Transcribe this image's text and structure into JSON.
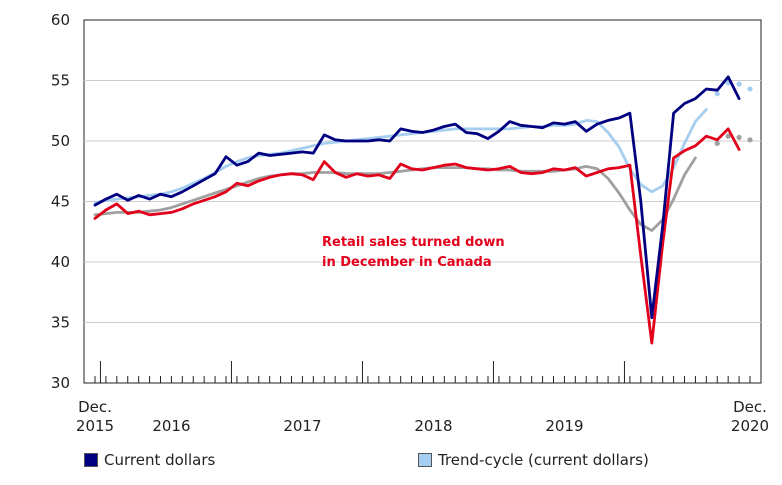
{
  "chart_data": {
    "type": "line",
    "title": "",
    "annotation": "Retail sales turned down in December in Canada",
    "annotation_lines": [
      "Retail sales turned down",
      "in December in Canada"
    ],
    "xlabel": "",
    "ylabel": "",
    "ylim": [
      30,
      60
    ],
    "y_ticks": [
      30,
      35,
      40,
      45,
      50,
      55,
      60
    ],
    "x_labels": [
      {
        "index": 0,
        "line1": "Dec.",
        "line2": "2015"
      },
      {
        "index": 7,
        "line1": "",
        "line2": "2016"
      },
      {
        "index": 19,
        "line1": "",
        "line2": "2017"
      },
      {
        "index": 31,
        "line1": "",
        "line2": "2018"
      },
      {
        "index": 43,
        "line1": "",
        "line2": "2019"
      },
      {
        "index": 60,
        "line1": "Dec.",
        "line2": "2020"
      }
    ],
    "year_separator_indices": [
      0.5,
      12.5,
      24.5,
      36.5,
      48.5
    ],
    "n_points": 61,
    "series": [
      {
        "name": "Current dollars",
        "color": "#000080",
        "legend": true,
        "values": [
          44.7,
          45.2,
          45.6,
          45.1,
          45.5,
          45.2,
          45.6,
          45.4,
          45.8,
          46.3,
          46.8,
          47.3,
          48.7,
          48.0,
          48.3,
          49.0,
          48.8,
          48.9,
          49.0,
          49.1,
          49.0,
          50.5,
          50.1,
          50.0,
          50.0,
          50.0,
          50.1,
          50.0,
          51.0,
          50.8,
          50.7,
          50.9,
          51.2,
          51.4,
          50.7,
          50.6,
          50.2,
          50.8,
          51.6,
          51.3,
          51.2,
          51.1,
          51.5,
          51.4,
          51.6,
          50.8,
          51.4,
          51.7,
          51.9,
          52.3,
          45.0,
          35.4,
          43.0,
          52.3,
          53.1,
          53.5,
          54.3,
          54.2,
          55.3,
          53.5,
          null
        ]
      },
      {
        "name": "Trend-cycle (current dollars)",
        "color": "#a6cef0",
        "legend": true,
        "values": [
          44.9,
          45.1,
          45.2,
          45.3,
          45.4,
          45.5,
          45.6,
          45.8,
          46.1,
          46.5,
          46.9,
          47.4,
          47.9,
          48.3,
          48.6,
          48.8,
          48.9,
          49.0,
          49.2,
          49.4,
          49.6,
          49.8,
          49.9,
          50.0,
          50.1,
          50.2,
          50.3,
          50.4,
          50.5,
          50.6,
          50.7,
          50.8,
          50.9,
          51.0,
          51.0,
          51.0,
          51.0,
          51.0,
          51.0,
          51.1,
          51.2,
          51.2,
          51.3,
          51.3,
          51.4,
          51.7,
          51.6,
          50.7,
          49.5,
          47.7,
          46.4,
          45.8,
          46.3,
          47.8,
          49.8,
          51.6,
          52.6,
          null,
          null,
          null,
          null
        ]
      },
      {
        "name": "Trend-cycle dotted (current dollars)",
        "color": "#a6cef0",
        "legend": false,
        "dotted": true,
        "values": [
          null,
          null,
          null,
          null,
          null,
          null,
          null,
          null,
          null,
          null,
          null,
          null,
          null,
          null,
          null,
          null,
          null,
          null,
          null,
          null,
          null,
          null,
          null,
          null,
          null,
          null,
          null,
          null,
          null,
          null,
          null,
          null,
          null,
          null,
          null,
          null,
          null,
          null,
          null,
          null,
          null,
          null,
          null,
          null,
          null,
          null,
          null,
          null,
          null,
          null,
          null,
          null,
          null,
          null,
          null,
          null,
          null,
          53.9,
          54.8,
          54.7,
          54.3
        ]
      },
      {
        "name": "Constant dollars",
        "color": "#e3001b",
        "legend": false,
        "values": [
          43.6,
          44.3,
          44.8,
          44.0,
          44.2,
          43.9,
          44.0,
          44.1,
          44.4,
          44.8,
          45.1,
          45.4,
          45.8,
          46.5,
          46.3,
          46.7,
          47.0,
          47.2,
          47.3,
          47.2,
          46.8,
          48.3,
          47.4,
          47.0,
          47.3,
          47.1,
          47.2,
          46.9,
          48.1,
          47.7,
          47.6,
          47.8,
          48.0,
          48.1,
          47.8,
          47.7,
          47.6,
          47.7,
          47.9,
          47.4,
          47.3,
          47.4,
          47.7,
          47.6,
          47.8,
          47.1,
          47.4,
          47.7,
          47.8,
          48.0,
          40.5,
          33.3,
          41.5,
          48.6,
          49.2,
          49.6,
          50.4,
          50.1,
          51.0,
          49.3,
          null
        ]
      },
      {
        "name": "Trend-cycle (constant dollars)",
        "color": "#a0a0a0",
        "legend": false,
        "values": [
          43.9,
          44.0,
          44.1,
          44.1,
          44.1,
          44.2,
          44.3,
          44.5,
          44.8,
          45.1,
          45.4,
          45.7,
          46.0,
          46.3,
          46.6,
          46.9,
          47.1,
          47.2,
          47.3,
          47.3,
          47.4,
          47.4,
          47.4,
          47.3,
          47.3,
          47.3,
          47.3,
          47.4,
          47.5,
          47.6,
          47.7,
          47.8,
          47.8,
          47.8,
          47.8,
          47.7,
          47.7,
          47.6,
          47.6,
          47.5,
          47.5,
          47.5,
          47.5,
          47.6,
          47.7,
          47.9,
          47.7,
          46.9,
          45.7,
          44.3,
          43.1,
          42.6,
          43.5,
          45.2,
          47.2,
          48.6,
          null,
          null,
          null,
          null,
          null
        ]
      },
      {
        "name": "Trend-cycle dotted (constant dollars)",
        "color": "#a0a0a0",
        "legend": false,
        "dotted": true,
        "values": [
          null,
          null,
          null,
          null,
          null,
          null,
          null,
          null,
          null,
          null,
          null,
          null,
          null,
          null,
          null,
          null,
          null,
          null,
          null,
          null,
          null,
          null,
          null,
          null,
          null,
          null,
          null,
          null,
          null,
          null,
          null,
          null,
          null,
          null,
          null,
          null,
          null,
          null,
          null,
          null,
          null,
          null,
          null,
          null,
          null,
          null,
          null,
          null,
          null,
          null,
          null,
          null,
          null,
          null,
          null,
          null,
          null,
          49.8,
          50.4,
          50.3,
          50.1
        ]
      }
    ]
  },
  "legend": {
    "items": [
      {
        "label": "Current dollars",
        "color": "#000080"
      },
      {
        "label": "Trend-cycle (current dollars)",
        "color": "#a6cef0"
      }
    ]
  }
}
